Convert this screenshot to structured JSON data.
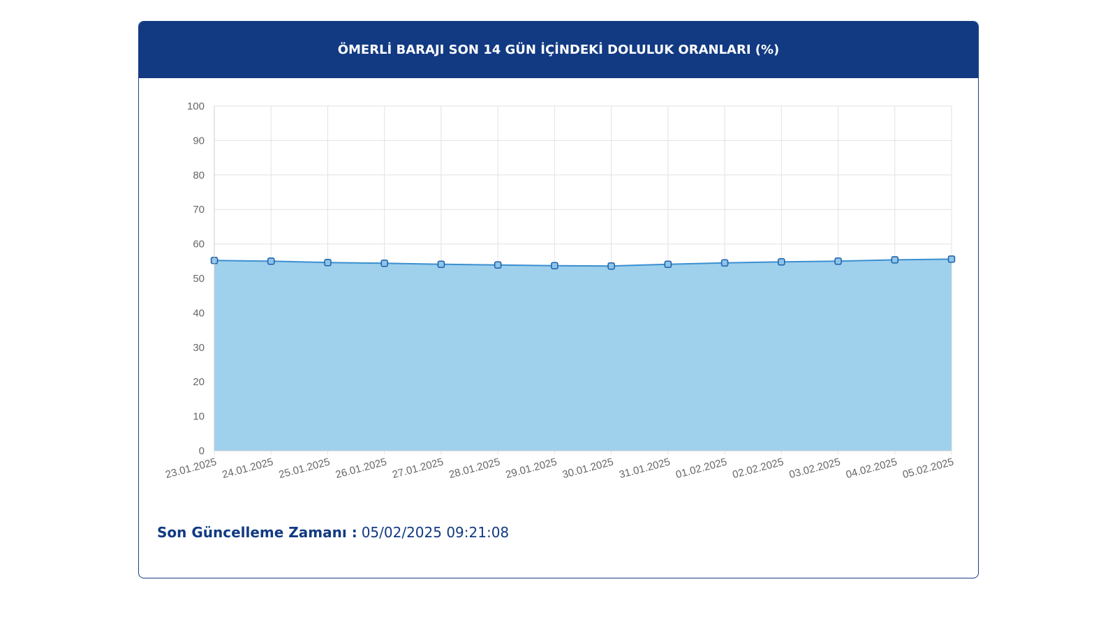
{
  "chart_data": {
    "type": "line",
    "title": "ÖMERLİ BARAJI SON 14 GÜN İÇİNDEKİ DOLULUK ORANLARI (%)",
    "categories": [
      "23.01.2025",
      "24.01.2025",
      "25.01.2025",
      "26.01.2025",
      "27.01.2025",
      "28.01.2025",
      "29.01.2025",
      "30.01.2025",
      "31.01.2025",
      "01.02.2025",
      "02.02.2025",
      "03.02.2025",
      "04.02.2025",
      "05.02.2025"
    ],
    "series": [
      {
        "name": "Doluluk",
        "color": "#3a8fd0",
        "values": [
          55.2,
          55.0,
          54.6,
          54.4,
          54.1,
          53.9,
          53.7,
          53.6,
          54.1,
          54.5,
          54.8,
          55.0,
          55.4,
          55.6
        ]
      }
    ],
    "area": true,
    "area_color": "#9fd0ec",
    "ylim": [
      0,
      100
    ],
    "yticks": [
      0,
      10,
      20,
      30,
      40,
      50,
      60,
      70,
      80,
      90,
      100
    ],
    "grid": true
  },
  "footer": {
    "label": "Son Güncelleme Zamanı :",
    "value": "05/02/2025 09:21:08"
  }
}
